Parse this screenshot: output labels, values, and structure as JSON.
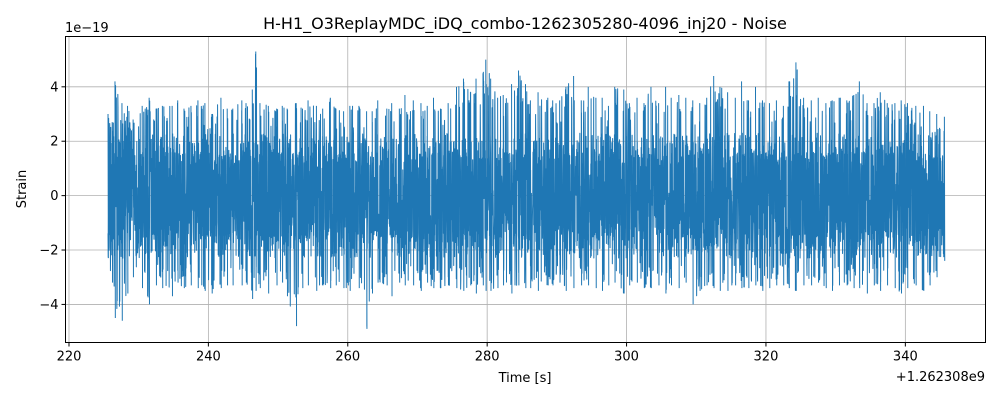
{
  "chart_data": {
    "type": "line",
    "title": "H-H1_O3ReplayMDC_iDQ_combo-1262305280-4096_inj20 - Noise",
    "xlabel": "Time [s]",
    "ylabel": "Strain",
    "x_offset_label": "+1.262308e9",
    "y_scale_label": "1e−19",
    "xlim": [
      219.5,
      351.5
    ],
    "ylim": [
      -5.4,
      5.85
    ],
    "x_ticks": [
      220,
      240,
      260,
      280,
      300,
      320,
      340
    ],
    "x_tick_labels": [
      "220",
      "240",
      "260",
      "280",
      "300",
      "320",
      "340"
    ],
    "y_ticks": [
      -4,
      -2,
      0,
      2,
      4
    ],
    "y_tick_labels": [
      "−4",
      "−2",
      "0",
      "2",
      "4"
    ],
    "grid": true,
    "legend": "none",
    "line_color": "#1f77b4",
    "series": [
      {
        "x_range": [
          225.6,
          345.6
        ],
        "envelope": [
          [
            225.6,
            3.0,
            -2.3
          ],
          [
            226.2,
            2.7,
            -3.2
          ],
          [
            226.6,
            4.2,
            -4.5
          ],
          [
            227.6,
            3.4,
            -4.6
          ],
          [
            228.4,
            3.3,
            -3.6
          ],
          [
            229.2,
            2.8,
            -3.0
          ],
          [
            230.5,
            3.3,
            -3.4
          ],
          [
            231.5,
            3.6,
            -4.0
          ],
          [
            232.5,
            3.2,
            -3.3
          ],
          [
            233.4,
            3.3,
            -3.4
          ],
          [
            234.8,
            3.3,
            -3.7
          ],
          [
            235.6,
            3.5,
            -3.2
          ],
          [
            236.5,
            3.2,
            -3.4
          ],
          [
            237.5,
            3.3,
            -3.3
          ],
          [
            238.5,
            3.5,
            -3.4
          ],
          [
            239.5,
            3.4,
            -3.5
          ],
          [
            240.5,
            3.0,
            -3.6
          ],
          [
            241.8,
            3.6,
            -3.4
          ],
          [
            242.7,
            3.2,
            -3.3
          ],
          [
            243.5,
            3.2,
            -3.3
          ],
          [
            244.8,
            3.5,
            -3.3
          ],
          [
            245.4,
            3.4,
            -3.2
          ],
          [
            246.3,
            3.9,
            -3.8
          ],
          [
            246.8,
            5.3,
            -3.5
          ],
          [
            247.4,
            3.4,
            -3.4
          ],
          [
            248.6,
            3.3,
            -3.6
          ],
          [
            249.8,
            3.2,
            -3.3
          ],
          [
            250.6,
            3.3,
            -3.2
          ],
          [
            251.3,
            3.2,
            -3.7
          ],
          [
            252.6,
            3.4,
            -4.8
          ],
          [
            253.5,
            3.2,
            -3.4
          ],
          [
            254.3,
            3.5,
            -3.3
          ],
          [
            255.5,
            3.3,
            -3.5
          ],
          [
            256.4,
            3.2,
            -3.3
          ],
          [
            257.5,
            3.6,
            -3.4
          ],
          [
            258.3,
            3.2,
            -3.3
          ],
          [
            259.4,
            3.1,
            -3.4
          ],
          [
            260.3,
            3.3,
            -3.5
          ],
          [
            261.6,
            3.3,
            -3.4
          ],
          [
            262.7,
            3.1,
            -4.9
          ],
          [
            263.5,
            3.1,
            -3.6
          ],
          [
            264.3,
            3.5,
            -3.2
          ],
          [
            265.6,
            3.2,
            -3.3
          ],
          [
            266.3,
            3.4,
            -3.7
          ],
          [
            267.4,
            3.2,
            -3.2
          ],
          [
            268.2,
            3.7,
            -3.3
          ],
          [
            269.4,
            3.5,
            -3.3
          ],
          [
            270.5,
            3.4,
            -3.5
          ],
          [
            271.4,
            3.3,
            -3.2
          ],
          [
            272.3,
            3.6,
            -3.4
          ],
          [
            273.3,
            3.2,
            -3.4
          ],
          [
            274.4,
            3.4,
            -3.3
          ],
          [
            275.6,
            4.0,
            -3.4
          ],
          [
            276.6,
            4.3,
            -3.5
          ],
          [
            277.6,
            3.8,
            -3.3
          ],
          [
            278.4,
            4.3,
            -3.6
          ],
          [
            279.4,
            4.5,
            -3.3
          ],
          [
            279.8,
            5.0,
            -3.5
          ],
          [
            280.5,
            4.3,
            -3.5
          ],
          [
            281.5,
            3.6,
            -3.4
          ],
          [
            282.3,
            3.7,
            -3.3
          ],
          [
            283.5,
            4.1,
            -3.6
          ],
          [
            284.5,
            4.6,
            -3.3
          ],
          [
            285.5,
            4.1,
            -3.4
          ],
          [
            286.2,
            3.5,
            -3.4
          ],
          [
            287.3,
            3.8,
            -3.5
          ],
          [
            288.7,
            3.6,
            -3.3
          ],
          [
            289.4,
            3.5,
            -3.3
          ],
          [
            290.4,
            3.5,
            -3.2
          ],
          [
            291.3,
            4.0,
            -3.5
          ],
          [
            292.4,
            4.4,
            -3.4
          ],
          [
            293.5,
            3.5,
            -3.3
          ],
          [
            294.5,
            4.0,
            -3.3
          ],
          [
            295.6,
            3.6,
            -3.4
          ],
          [
            296.5,
            3.6,
            -3.5
          ],
          [
            297.4,
            3.3,
            -3.3
          ],
          [
            298.3,
            4.0,
            -3.2
          ],
          [
            299.6,
            3.9,
            -3.6
          ],
          [
            300.4,
            3.4,
            -3.3
          ],
          [
            301.5,
            3.6,
            -3.2
          ],
          [
            302.5,
            3.4,
            -3.4
          ],
          [
            303.5,
            4.0,
            -3.4
          ],
          [
            304.6,
            3.4,
            -3.3
          ],
          [
            305.6,
            4.0,
            -3.6
          ],
          [
            306.4,
            3.6,
            -3.3
          ],
          [
            307.5,
            3.7,
            -3.4
          ],
          [
            308.5,
            3.6,
            -3.2
          ],
          [
            309.5,
            3.5,
            -4.0
          ],
          [
            310.5,
            3.4,
            -3.5
          ],
          [
            311.5,
            3.6,
            -3.3
          ],
          [
            312.5,
            4.4,
            -3.4
          ],
          [
            313.4,
            4.0,
            -3.5
          ],
          [
            314.5,
            3.8,
            -3.5
          ],
          [
            315.6,
            3.6,
            -3.3
          ],
          [
            316.5,
            4.2,
            -3.4
          ],
          [
            317.5,
            3.5,
            -3.4
          ],
          [
            318.5,
            4.0,
            -3.3
          ],
          [
            319.5,
            3.5,
            -3.5
          ],
          [
            320.5,
            3.4,
            -3.4
          ],
          [
            321.5,
            3.5,
            -3.3
          ],
          [
            322.5,
            3.3,
            -3.3
          ],
          [
            323.3,
            4.2,
            -3.4
          ],
          [
            324.3,
            4.9,
            -3.5
          ],
          [
            325.4,
            3.6,
            -3.3
          ],
          [
            326.5,
            3.5,
            -3.3
          ],
          [
            327.5,
            3.6,
            -3.2
          ],
          [
            328.6,
            3.4,
            -3.4
          ],
          [
            329.5,
            3.5,
            -3.5
          ],
          [
            330.5,
            3.6,
            -3.3
          ],
          [
            331.6,
            3.5,
            -3.3
          ],
          [
            332.6,
            3.7,
            -3.4
          ],
          [
            333.4,
            4.2,
            -3.4
          ],
          [
            334.5,
            3.4,
            -3.6
          ],
          [
            335.5,
            3.4,
            -3.3
          ],
          [
            336.4,
            3.8,
            -3.5
          ],
          [
            337.4,
            3.4,
            -3.3
          ],
          [
            338.5,
            3.4,
            -3.4
          ],
          [
            339.4,
            3.5,
            -3.6
          ],
          [
            340.3,
            3.4,
            -3.4
          ],
          [
            341.5,
            3.3,
            -3.3
          ],
          [
            342.6,
            3.3,
            -3.5
          ],
          [
            343.5,
            3.1,
            -3.3
          ],
          [
            344.5,
            3.0,
            -3.0
          ],
          [
            345.6,
            2.9,
            -2.4
          ]
        ]
      }
    ]
  }
}
